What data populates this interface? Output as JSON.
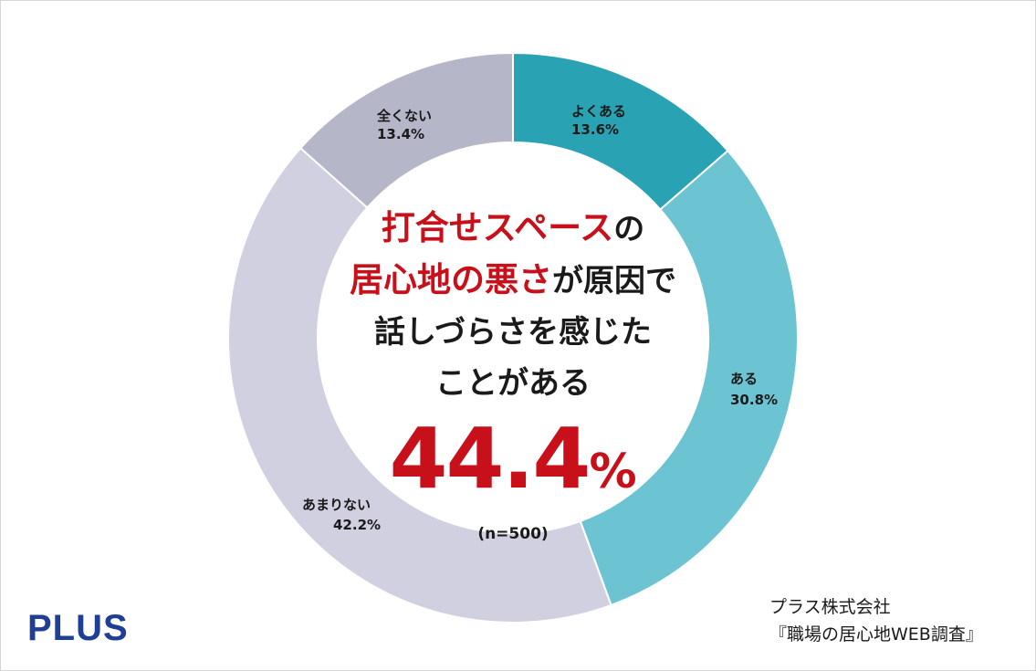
{
  "chart_data": {
    "type": "pie",
    "slices": [
      {
        "label": "よくある",
        "value": 13.6,
        "display": "13.6%",
        "color": "#29a2b4"
      },
      {
        "label": "ある",
        "value": 30.8,
        "display": "30.8%",
        "color": "#6cc4d2"
      },
      {
        "label": "あまりない",
        "value": 42.2,
        "display": "42.2%",
        "color": "#d0d0e0"
      },
      {
        "label": "全くない",
        "value": 13.4,
        "display": "13.4%",
        "color": "#b6b6c9"
      }
    ]
  },
  "headline": {
    "line1_red": "打合せスペース",
    "line1_black": "の",
    "line2_red": "居心地の悪さ",
    "line2_black": "が原因で",
    "line3": "話しづらさを感じた",
    "line4": "ことがある"
  },
  "result": {
    "number": "44.4",
    "sign": "%",
    "sample": "(n=500)"
  },
  "footer": {
    "company": "プラス株式会社",
    "survey": "『職場の居心地WEB調査』",
    "logo": "PLUS"
  },
  "colors": {
    "accent_red": "#c8101a",
    "logo_blue": "#1f3f95"
  }
}
